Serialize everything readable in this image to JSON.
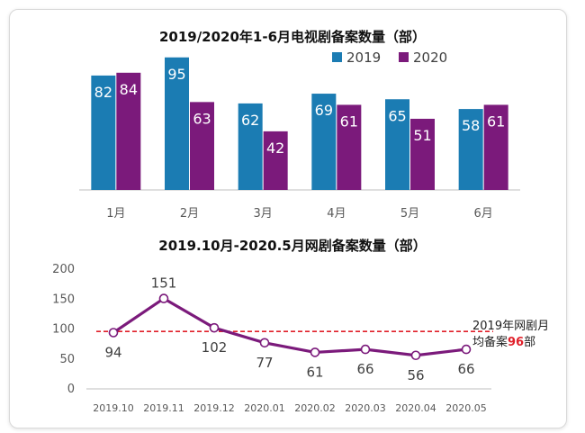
{
  "chart_data": [
    {
      "type": "bar",
      "title": "2019/2020年1-6月电视剧备案数量（部）",
      "categories": [
        "1月",
        "2月",
        "3月",
        "4月",
        "5月",
        "6月"
      ],
      "series": [
        {
          "name": "2019",
          "color": "#1b7cb3",
          "values": [
            82,
            95,
            62,
            69,
            65,
            58
          ]
        },
        {
          "name": "2020",
          "color": "#7b1a7b",
          "values": [
            84,
            63,
            42,
            61,
            51,
            61
          ]
        }
      ],
      "ylim": [
        0,
        100
      ],
      "legend": "top-right",
      "grid": false
    },
    {
      "type": "line",
      "title": "2019.10月-2020.5月网剧备案数量（部）",
      "x": [
        "2019.10",
        "2019.11",
        "2019.12",
        "2020.01",
        "2020.02",
        "2020.03",
        "2020.04",
        "2020.05"
      ],
      "series": [
        {
          "color": "#7b1a7b",
          "values": [
            94,
            151,
            102,
            77,
            61,
            66,
            56,
            66
          ]
        }
      ],
      "ylim": [
        0,
        200
      ],
      "yticks": [
        0,
        50,
        100,
        150,
        200
      ],
      "reference_line": {
        "value": 96,
        "color": "#e0202a",
        "style": "dashed"
      },
      "annotation": {
        "line1": "2019年网剧月",
        "line2_prefix": "均备案",
        "line2_value": "96",
        "line2_suffix": "部",
        "value_color": "#e0202a"
      },
      "grid": false
    }
  ]
}
